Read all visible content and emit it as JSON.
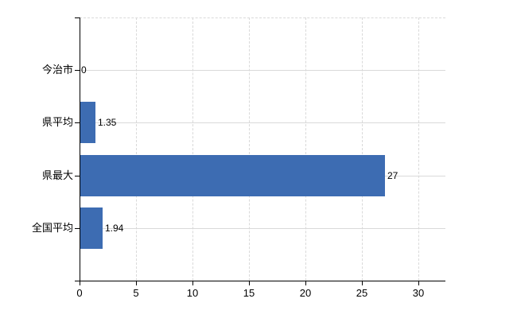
{
  "chart_data": {
    "type": "bar",
    "orientation": "horizontal",
    "title": "",
    "xlabel": "",
    "ylabel": "",
    "categories": [
      "今治市",
      "県平均",
      "県最大",
      "全国平均"
    ],
    "values": [
      0,
      1.35,
      27,
      1.94
    ],
    "value_labels": [
      "0",
      "1.35",
      "27",
      "1.94"
    ],
    "xlim": [
      0,
      32.4
    ],
    "xticks": [
      0,
      5,
      10,
      15,
      20,
      25,
      30
    ],
    "xtick_labels": [
      "0",
      "5",
      "10",
      "15",
      "20",
      "25",
      "30"
    ],
    "grid": {
      "vertical": "dashed",
      "horizontal": "solid",
      "top_border": "dashed",
      "right_border": "none"
    },
    "legend": "none",
    "colors": {
      "bar": "#3d6cb2",
      "grid": "#d9d9d9",
      "axis": "#000000",
      "text": "#000000",
      "background": "#ffffff"
    }
  }
}
